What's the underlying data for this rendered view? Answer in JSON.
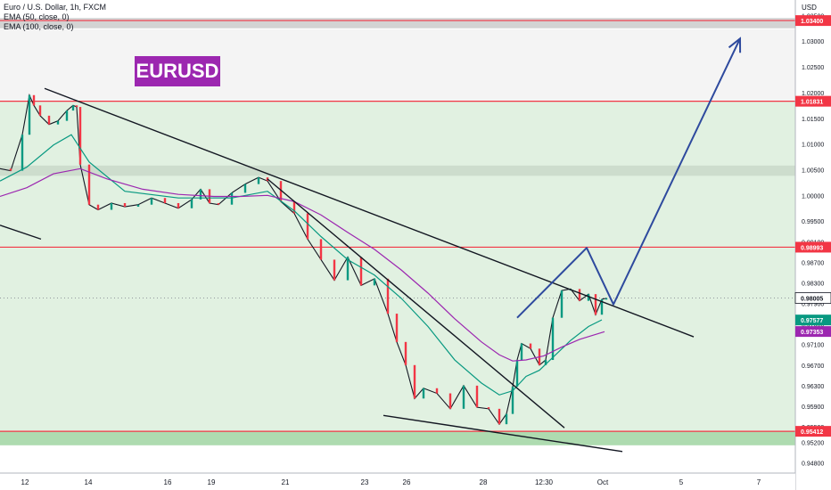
{
  "chart_data": {
    "type": "line",
    "symbol_line": "Euro / U.S. Dollar, 1h, FXCM",
    "indicators": [
      "EMA (50, close, 0)",
      "EMA (100, close, 0)"
    ],
    "annotation_title": "EURUSD",
    "currency": "USD",
    "x_ticks": [
      "12",
      "14",
      "16",
      "19",
      "21",
      "23",
      "26",
      "28",
      "12:30",
      "Oct",
      "5",
      "7"
    ],
    "y_ticks": [
      "1.03500",
      "1.03000",
      "1.02500",
      "1.02000",
      "1.01500",
      "1.01000",
      "1.00500",
      "1.00000",
      "0.99500",
      "0.99100",
      "0.98700",
      "0.98300",
      "0.97900",
      "0.97500",
      "0.97100",
      "0.96700",
      "0.96300",
      "0.95900",
      "0.95500",
      "0.95200",
      "0.94800"
    ],
    "ylim": [
      0.946,
      1.038
    ],
    "price_labels": [
      {
        "value": "1.03400",
        "color": "#f23645"
      },
      {
        "value": "1.01831",
        "color": "#f23645"
      },
      {
        "value": "0.98993",
        "color": "#f23645"
      },
      {
        "value": "0.98005",
        "color": "#ffffff"
      },
      {
        "value": "0.97577",
        "color": "#089981"
      },
      {
        "value": "0.97353",
        "color": "#9c27b0"
      },
      {
        "value": "0.95412",
        "color": "#f23645"
      }
    ],
    "horizontal_levels": [
      1.034,
      1.01831,
      0.98993,
      0.95412
    ],
    "zones": [
      {
        "from": 1.0325,
        "to": 1.0345,
        "color": "#9e9e9e"
      },
      {
        "from": 1.0038,
        "to": 1.0058,
        "color": "#9e9e9e"
      },
      {
        "from": 0.9514,
        "to": 0.9541,
        "color": "#4caf50"
      }
    ],
    "current_price": 0.98005,
    "series": [
      {
        "name": "EUR/USD",
        "color": "#131722",
        "x": [
          0,
          12,
          25,
          33,
          38,
          45,
          55,
          65,
          75,
          82,
          86,
          90,
          100,
          110,
          125,
          140,
          155,
          170,
          185,
          200,
          215,
          225,
          235,
          245,
          260,
          275,
          290,
          300,
          315,
          330,
          345,
          360,
          375,
          390,
          405,
          420,
          435,
          445,
          455,
          465,
          475,
          490,
          505,
          520,
          535,
          548,
          560,
          568,
          575,
          580,
          585,
          595,
          605,
          612,
          620,
          630,
          640,
          650,
          660,
          668,
          675,
          680
        ],
        "y": [
          1.0052,
          1.0048,
          1.0118,
          1.0195,
          1.0175,
          1.0155,
          1.0138,
          1.0145,
          1.0165,
          1.0175,
          1.0172,
          1.006,
          0.9982,
          0.9972,
          0.9985,
          0.9978,
          0.9982,
          0.9995,
          0.9985,
          0.9975,
          0.9992,
          1.0012,
          0.9985,
          0.9982,
          1.0005,
          1.0022,
          1.0035,
          1.0028,
          0.9988,
          0.9965,
          0.9915,
          0.9875,
          0.9835,
          0.988,
          0.9825,
          0.9838,
          0.977,
          0.9715,
          0.967,
          0.9605,
          0.9625,
          0.9615,
          0.9585,
          0.963,
          0.9588,
          0.9585,
          0.9555,
          0.9575,
          0.9628,
          0.968,
          0.9712,
          0.9702,
          0.967,
          0.968,
          0.9762,
          0.9815,
          0.9818,
          0.9795,
          0.9808,
          0.9768,
          0.9798,
          0.98
        ]
      },
      {
        "name": "EMA (50, close, 0)",
        "color": "#089981",
        "x": [
          0,
          30,
          60,
          80,
          100,
          140,
          200,
          260,
          300,
          330,
          360,
          390,
          420,
          450,
          480,
          510,
          540,
          560,
          575,
          590,
          605,
          620,
          640,
          660,
          675
        ],
        "y": [
          1.0028,
          1.0055,
          1.0098,
          1.0118,
          1.0065,
          1.0008,
          0.9995,
          0.9995,
          1.0008,
          0.997,
          0.992,
          0.9875,
          0.9845,
          0.98,
          0.9745,
          0.968,
          0.9635,
          0.9612,
          0.962,
          0.9648,
          0.966,
          0.9685,
          0.9718,
          0.9745,
          0.9758
        ]
      },
      {
        "name": "EMA (100, close, 0)",
        "color": "#9c27b0",
        "x": [
          0,
          30,
          60,
          90,
          120,
          160,
          200,
          240,
          270,
          300,
          330,
          360,
          390,
          420,
          450,
          480,
          510,
          540,
          560,
          575,
          590,
          610,
          630,
          650,
          665,
          678
        ],
        "y": [
          0.9998,
          1.0015,
          1.0042,
          1.0052,
          1.0032,
          1.0012,
          1.0002,
          0.9998,
          0.9998,
          1.0,
          0.9988,
          0.9962,
          0.9928,
          0.9895,
          0.9855,
          0.981,
          0.976,
          0.9715,
          0.969,
          0.9678,
          0.968,
          0.9688,
          0.9705,
          0.972,
          0.9728,
          0.9735
        ]
      }
    ],
    "trendlines": [
      {
        "from": [
          50,
          1.0208
        ],
        "to": [
          778,
          0.9725
        ],
        "color": "#131722"
      },
      {
        "from": [
          300,
          1.0032
        ],
        "to": [
          633,
          0.9548
        ],
        "color": "#131722"
      },
      {
        "from": [
          430,
          0.9572
        ],
        "to": [
          698,
          0.9502
        ],
        "color": "#131722"
      },
      {
        "from": [
          0,
          0.9942
        ],
        "to": [
          46,
          0.9915
        ],
        "color": "#131722"
      }
    ],
    "projection": [
      [
        580,
        0.9762
      ],
      [
        658,
        0.9898
      ],
      [
        688,
        0.9788
      ],
      [
        830,
        1.0305
      ]
    ]
  }
}
